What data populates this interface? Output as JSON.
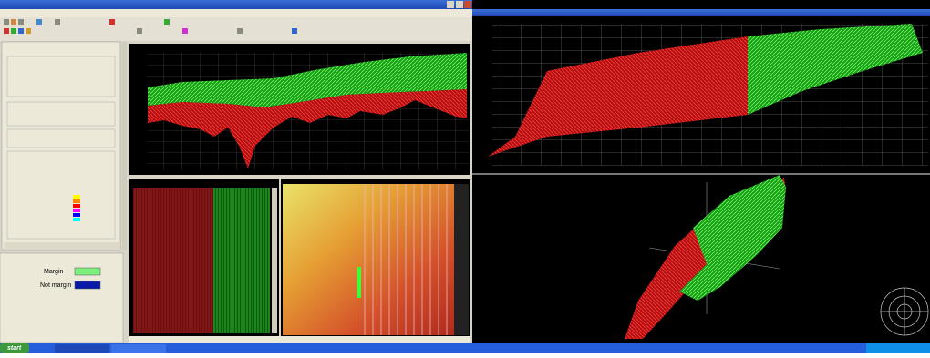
{
  "left_panel": {
    "margin_label": "Margin",
    "not_margin_label": "Not margin"
  },
  "taskbar": {
    "start": "start"
  }
}
